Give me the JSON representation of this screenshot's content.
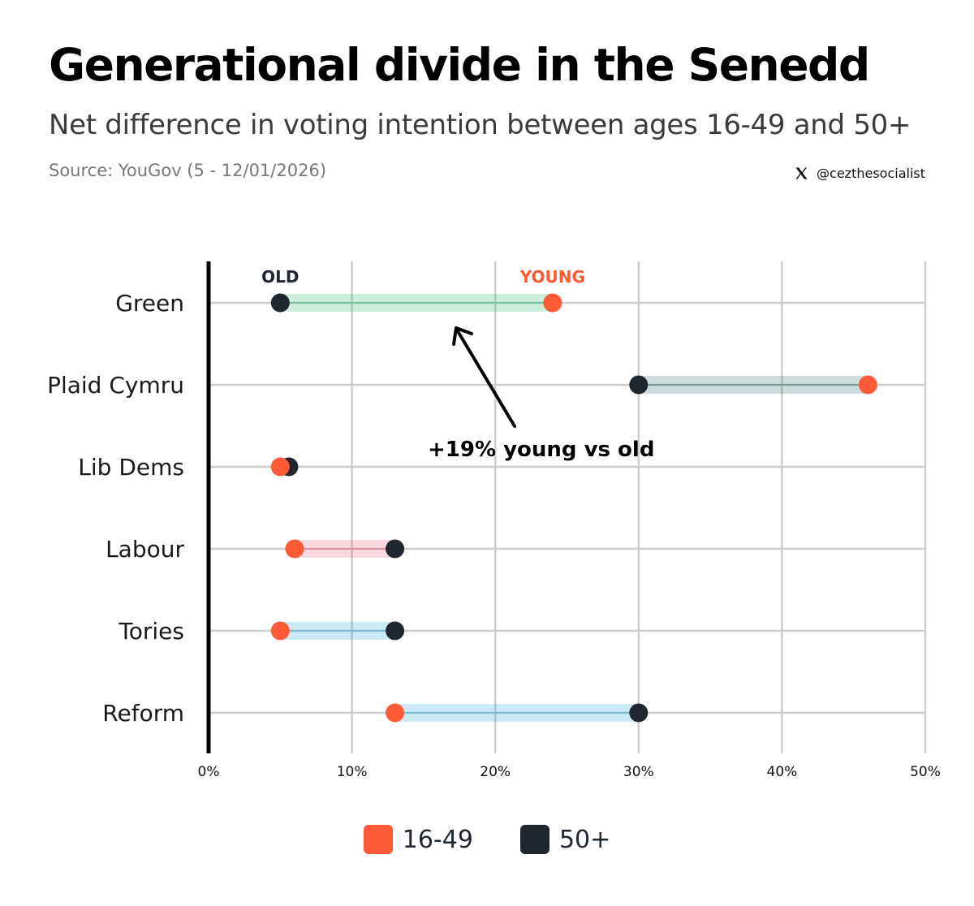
{
  "header": {
    "title": "Generational divide in the Senedd",
    "subtitle": "Net difference in voting intention between ages 16-49 and 50+",
    "source": "Source: YouGov (5 - 12/01/2026)",
    "handle": "@cezthesocialist",
    "handle_icon": "x-logo-icon"
  },
  "colors": {
    "young": "#ff5a36",
    "old": "#1f2630",
    "axis": "#000000",
    "grid": "#cccccc"
  },
  "chart_data": {
    "type": "dumbbell",
    "categories": [
      "Green",
      "Plaid Cymru",
      "Lib Dems",
      "Labour",
      "Tories",
      "Reform"
    ],
    "series": [
      {
        "name": "16-49",
        "key": "young",
        "values": [
          24,
          46,
          5,
          6,
          5,
          13
        ]
      },
      {
        "name": "50+",
        "key": "old",
        "values": [
          5,
          30,
          5.6,
          13,
          13,
          30
        ]
      }
    ],
    "bar_colors": [
      "#2dba6e",
      "#2e6b63",
      "#1f2630",
      "#e65a7a",
      "#2aa9d6",
      "#2aa9d6"
    ],
    "xlim": [
      0,
      50
    ],
    "xticks": [
      0,
      10,
      20,
      30,
      40,
      50
    ],
    "xtick_labels": [
      "0%",
      "10%",
      "20%",
      "30%",
      "40%",
      "50%"
    ],
    "grid": true,
    "labels": {
      "old": "OLD",
      "young": "YOUNG"
    },
    "annotation": {
      "text": "+19% young vs old",
      "points_to": "Green"
    },
    "legend": {
      "position": "bottom-center",
      "entries": [
        "16-49",
        "50+"
      ]
    }
  }
}
